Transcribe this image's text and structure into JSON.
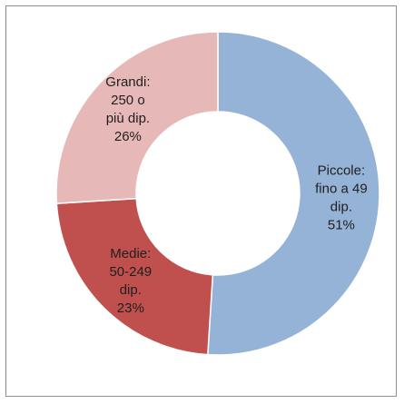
{
  "chart_data": {
    "type": "pie",
    "title": "",
    "categories": [
      "Piccole: fino a 49 dip.",
      "Medie: 50-249 dip.",
      "Grandi: 250 o più dip."
    ],
    "values": [
      51,
      23,
      26
    ],
    "unit": "%",
    "slices": [
      {
        "label_lines": [
          "Piccole:",
          "fino a 49",
          "dip."
        ],
        "value_label": "51%",
        "value": 51,
        "color": "#95b3d7"
      },
      {
        "label_lines": [
          "Medie:",
          "50-249",
          "dip."
        ],
        "value_label": "23%",
        "value": 23,
        "color": "#c0504d"
      },
      {
        "label_lines": [
          "Grandi:",
          "250 o",
          "più dip."
        ],
        "value_label": "26%",
        "value": 26,
        "color": "#e6b9b8"
      }
    ],
    "legend": "none",
    "donut": true
  }
}
